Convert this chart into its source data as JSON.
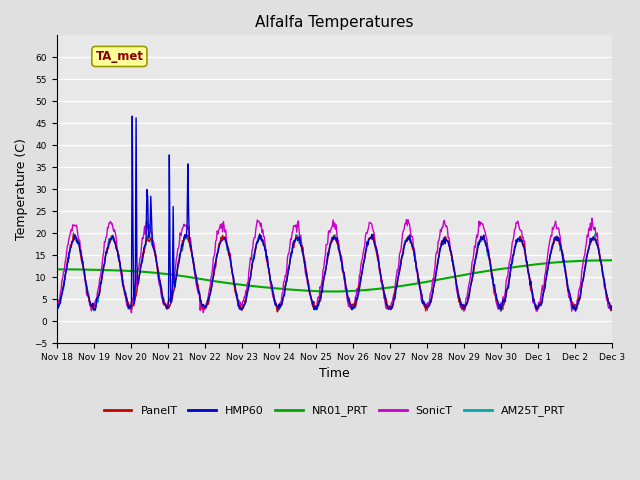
{
  "title": "Alfalfa Temperatures",
  "xlabel": "Time",
  "ylabel": "Temperature (C)",
  "ylim": [
    -5,
    65
  ],
  "yticks": [
    -5,
    0,
    5,
    10,
    15,
    20,
    25,
    30,
    35,
    40,
    45,
    50,
    55,
    60
  ],
  "bg_color": "#e0e0e0",
  "plot_bg_color": "#e8e8e8",
  "annotation_text": "TA_met",
  "annotation_box_color": "#ffff99",
  "annotation_text_color": "#880000",
  "series": {
    "PanelT": {
      "color": "#cc0000",
      "lw": 1.0
    },
    "HMP60": {
      "color": "#0000cc",
      "lw": 1.0
    },
    "NR01_PRT": {
      "color": "#00aa00",
      "lw": 1.5
    },
    "SonicT": {
      "color": "#cc00cc",
      "lw": 1.0
    },
    "AM25T_PRT": {
      "color": "#00aaaa",
      "lw": 1.0
    }
  },
  "xtick_labels": [
    "Nov 18",
    "Nov 19",
    "Nov 20",
    "Nov 21",
    "Nov 22",
    "Nov 23",
    "Nov 24",
    "Nov 25",
    "Nov 26",
    "Nov 27",
    "Nov 28",
    "Nov 29",
    "Nov 30",
    "Dec 1",
    "Dec 2",
    "Dec 3"
  ],
  "xtick_positions": [
    0,
    1,
    2,
    3,
    4,
    5,
    6,
    7,
    8,
    9,
    10,
    11,
    12,
    13,
    14,
    15
  ]
}
